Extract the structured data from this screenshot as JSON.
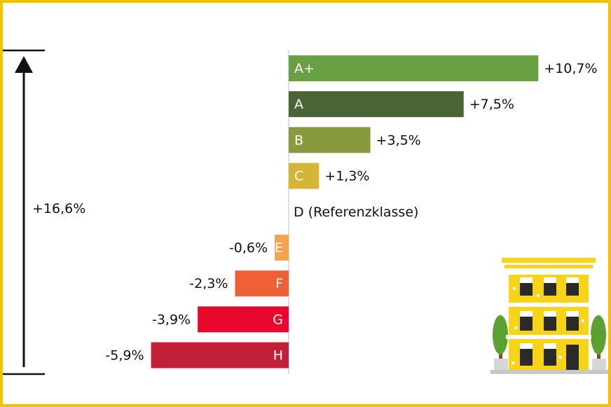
{
  "chart_data": {
    "type": "bar",
    "orientation": "horizontal",
    "categories": [
      "A+",
      "A",
      "B",
      "C",
      "D",
      "E",
      "F",
      "G",
      "H"
    ],
    "values": [
      10.7,
      7.5,
      3.5,
      1.3,
      0.0,
      -0.6,
      -2.3,
      -3.9,
      -5.9
    ],
    "value_labels": [
      "+10,7%",
      "+7,5%",
      "+3,5%",
      "+1,3%",
      "",
      "-0,6%",
      "-2,3%",
      "-3,9%",
      "-5,9%"
    ],
    "reference_label": "D (Referenzklasse)",
    "bar_colors": [
      "#6aa044",
      "#4a6436",
      "#879a3e",
      "#d4b535",
      "#ffffff",
      "#f4a352",
      "#ef6037",
      "#e8082d",
      "#c12038"
    ],
    "span_label": "+16,6%",
    "title": "",
    "xlabel": "",
    "ylabel": "",
    "xlim": [
      -6,
      11
    ]
  },
  "colors": {
    "frame": "#f2c200",
    "building_yellow": "#f7d417"
  },
  "illustration": {
    "icon": "building-with-trees-icon"
  }
}
